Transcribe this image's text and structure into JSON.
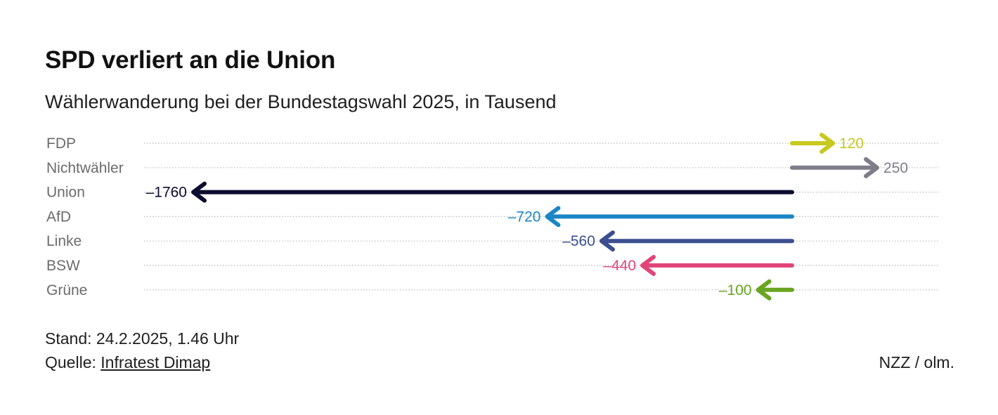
{
  "header": {
    "title": "SPD verliert an die Union",
    "subtitle": "Wählerwanderung bei der Bundestagswahl 2025, in Tausend"
  },
  "chart_data": {
    "type": "bar",
    "style": "arrow",
    "categories": [
      "FDP",
      "Nichtwähler",
      "Union",
      "AfD",
      "Linke",
      "BSW",
      "Grüne"
    ],
    "values": [
      120,
      250,
      -1760,
      -720,
      -560,
      -440,
      -100
    ],
    "value_labels": [
      "120",
      "250",
      "–1760",
      "–720",
      "–560",
      "–440",
      "–100"
    ],
    "colors": [
      "#c8c81e",
      "#7e7e8a",
      "#0c0c2e",
      "#1b86c6",
      "#3b4e8f",
      "#e0457a",
      "#6aa521"
    ],
    "xlim": [
      -1760,
      250
    ],
    "grid": "dotted horizontal guide per row"
  },
  "footer": {
    "stand": "Stand: 24.2.2025, 1.46 Uhr",
    "source_prefix": "Quelle: ",
    "source_link": "Infratest Dimap",
    "credit": "NZZ / olm."
  }
}
